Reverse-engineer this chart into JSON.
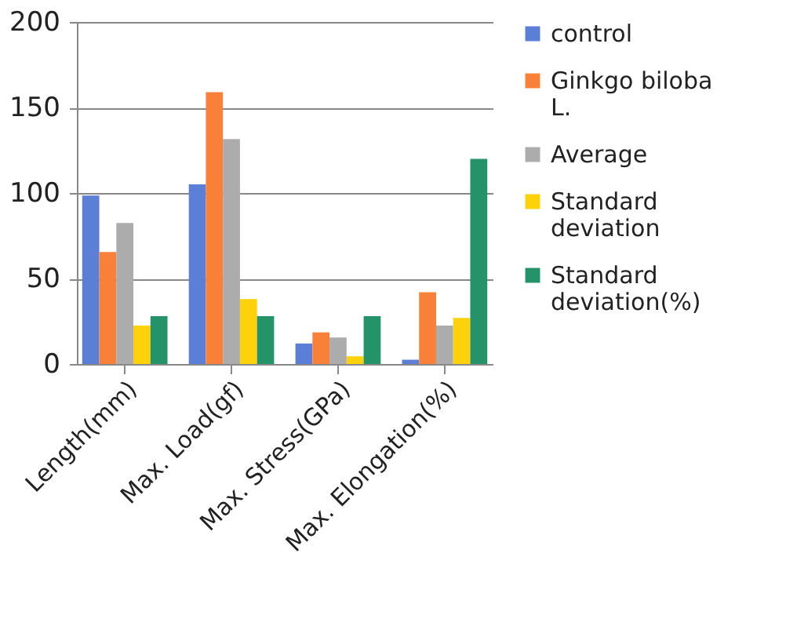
{
  "chart_data": {
    "type": "bar",
    "categories": [
      "Length(mm)",
      "Max. Load(gf)",
      "Max. Stress(GPa)",
      "Max. Elongation(%)"
    ],
    "series": [
      {
        "name": "control",
        "color": "#5b7fd6",
        "values": [
          98.5,
          105,
          12,
          2.5
        ]
      },
      {
        "name": "Ginkgo biloba L.",
        "color": "#f98038",
        "values": [
          65.5,
          159,
          18.5,
          42
        ]
      },
      {
        "name": "Average",
        "color": "#acacac",
        "values": [
          82.5,
          131.5,
          15.5,
          22.5
        ]
      },
      {
        "name": "Standard deviation",
        "color": "#fdd20a",
        "values": [
          22.5,
          38,
          4.5,
          27
        ]
      },
      {
        "name": "Standard deviation(%)",
        "color": "#25936a",
        "values": [
          28,
          28,
          28,
          120
        ]
      }
    ],
    "ylim": [
      0,
      200
    ],
    "yticks": [
      0,
      50,
      100,
      150,
      200
    ],
    "grid": "y",
    "legend": "right"
  }
}
